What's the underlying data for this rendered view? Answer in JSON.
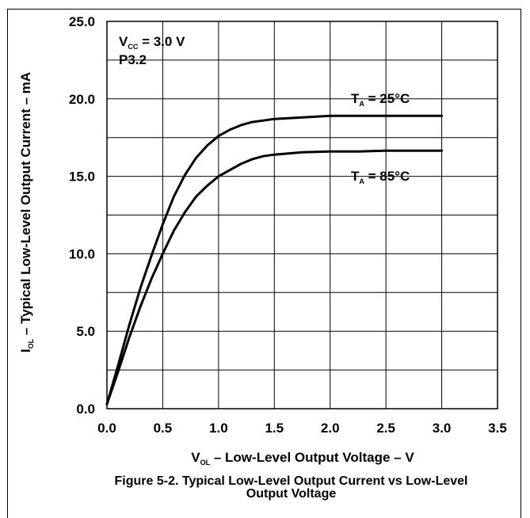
{
  "chart_data": {
    "type": "line",
    "title": "",
    "xlabel": {
      "symbol": "V",
      "subscript": "OL",
      "text": " – Low-Level Output Voltage – V"
    },
    "ylabel": {
      "symbol": "I",
      "subscript": "OL",
      "text": " – Typical Low-Level Output Current – mA"
    },
    "xlim": [
      0.0,
      3.5
    ],
    "ylim": [
      0.0,
      25.0
    ],
    "x_ticks": [
      "0.0",
      "0.5",
      "1.0",
      "1.5",
      "2.0",
      "2.5",
      "3.0",
      "3.5"
    ],
    "y_ticks": [
      "0.0",
      "5.0",
      "10.0",
      "15.0",
      "20.0",
      "25.0"
    ],
    "grid": true,
    "annotations": {
      "vcc": {
        "symbol": "V",
        "subscript": "CC",
        "text": " = 3.0 V"
      },
      "pin": "P3.2"
    },
    "series": [
      {
        "name": "TA = 25°C",
        "label": {
          "symbol": "T",
          "subscript": "A",
          "text": " = 25°C"
        },
        "x": [
          0.0,
          0.1,
          0.2,
          0.3,
          0.4,
          0.5,
          0.6,
          0.7,
          0.8,
          0.9,
          1.0,
          1.1,
          1.2,
          1.3,
          1.4,
          1.5,
          1.75,
          2.0,
          2.25,
          2.5,
          2.75,
          3.0
        ],
        "y": [
          0.3,
          2.8,
          5.4,
          7.8,
          9.9,
          11.9,
          13.7,
          15.1,
          16.2,
          17.0,
          17.6,
          18.0,
          18.3,
          18.5,
          18.6,
          18.7,
          18.8,
          18.9,
          18.9,
          18.9,
          18.9,
          18.9
        ]
      },
      {
        "name": "TA = 85°C",
        "label": {
          "symbol": "T",
          "subscript": "A",
          "text": " = 85°C"
        },
        "x": [
          0.0,
          0.1,
          0.2,
          0.3,
          0.4,
          0.5,
          0.6,
          0.7,
          0.8,
          0.9,
          1.0,
          1.1,
          1.2,
          1.3,
          1.4,
          1.5,
          1.75,
          2.0,
          2.25,
          2.5,
          2.75,
          3.0
        ],
        "y": [
          0.3,
          2.4,
          4.6,
          6.6,
          8.4,
          10.0,
          11.5,
          12.7,
          13.7,
          14.4,
          15.0,
          15.4,
          15.8,
          16.1,
          16.3,
          16.4,
          16.55,
          16.6,
          16.6,
          16.65,
          16.65,
          16.65
        ]
      }
    ]
  },
  "caption": {
    "line1": "Figure 5-2. Typical Low-Level Output Current vs Low-Level",
    "line2": "Output Voltage"
  }
}
